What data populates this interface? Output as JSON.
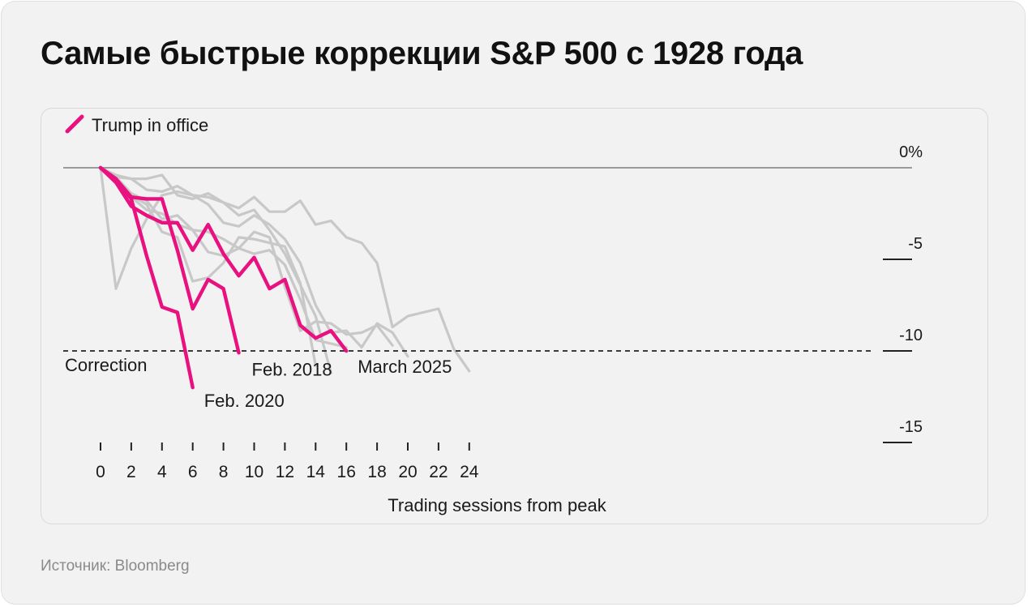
{
  "title": "Самые быстрые коррекции S&P 500 с 1928 года",
  "source": "Источник: Bloomberg",
  "chart_data": {
    "type": "line",
    "legend": {
      "label": "Trump in office",
      "color": "#e8117f",
      "placement": "top-left"
    },
    "xlabel": "Trading sessions from peak",
    "ylabel": "",
    "xlim": [
      0,
      24
    ],
    "ylim": [
      -15,
      0
    ],
    "x_ticks": [
      0,
      2,
      4,
      6,
      8,
      10,
      12,
      14,
      16,
      18,
      20,
      22,
      24
    ],
    "y_ticks": [
      {
        "value": 0,
        "label": "0%"
      },
      {
        "value": -5,
        "label": "-5"
      },
      {
        "value": -10,
        "label": "-10"
      },
      {
        "value": -15,
        "label": "-15"
      }
    ],
    "reference_line": {
      "value": -10,
      "label": "Correction",
      "style": "dashed"
    },
    "highlight_color": "#e8117f",
    "other_color": "#c8c8c8",
    "series": [
      {
        "highlight": true,
        "label": "Feb. 2020",
        "x": [
          0,
          1,
          2,
          3,
          4,
          5,
          6
        ],
        "y": [
          0,
          -0.7,
          -1.7,
          -4.8,
          -7.6,
          -7.9,
          -12.0
        ]
      },
      {
        "highlight": true,
        "label": "Feb. 2018",
        "x": [
          0,
          1,
          2,
          3,
          4,
          5,
          6,
          7,
          8,
          9
        ],
        "y": [
          0,
          -0.6,
          -1.6,
          -1.7,
          -1.7,
          -4.5,
          -7.7,
          -6.1,
          -6.6,
          -10.1
        ]
      },
      {
        "highlight": true,
        "label": "March 2025",
        "x": [
          0,
          1,
          2,
          3,
          4,
          5,
          6,
          7,
          8,
          9,
          10,
          11,
          12,
          13,
          14,
          15,
          16
        ],
        "y": [
          0,
          -0.8,
          -2.1,
          -2.6,
          -3.0,
          -3.0,
          -4.5,
          -3.1,
          -4.7,
          -5.9,
          -4.9,
          -6.6,
          -6.1,
          -8.6,
          -9.3,
          -8.9,
          -10.0
        ]
      },
      {
        "highlight": false,
        "x": [
          0,
          1,
          2,
          3,
          4,
          5,
          6,
          7,
          8,
          9,
          10,
          11,
          12,
          13,
          14,
          15,
          16,
          17,
          18,
          19,
          20
        ],
        "y": [
          0,
          -6.6,
          -4.4,
          -2.8,
          -1.5,
          -1.3,
          -1.5,
          -2.0,
          -3.0,
          -3.2,
          -2.6,
          -3.1,
          -3.9,
          -5.2,
          -7.5,
          -9.0,
          -8.9,
          -9.8,
          -8.5,
          -9.0,
          -10.3
        ]
      },
      {
        "highlight": false,
        "x": [
          0,
          1,
          2,
          3,
          4,
          5,
          6,
          7,
          8,
          9,
          10,
          11,
          12,
          13,
          14,
          15,
          16,
          17,
          18,
          19,
          20,
          21,
          22,
          23,
          24
        ],
        "y": [
          0,
          -0.5,
          -0.6,
          -1.2,
          -1.3,
          -1.0,
          -1.5,
          -1.6,
          -1.9,
          -2.2,
          -1.6,
          -2.4,
          -2.4,
          -1.8,
          -3.1,
          -2.9,
          -3.8,
          -4.1,
          -5.2,
          -8.7,
          -8.1,
          -7.9,
          -7.7,
          -9.9,
          -11.1
        ]
      },
      {
        "highlight": false,
        "x": [
          0,
          1,
          2,
          3,
          4,
          5,
          6,
          7,
          8,
          9,
          10,
          11,
          12,
          13,
          14,
          15
        ],
        "y": [
          0,
          -0.4,
          -0.6,
          -0.6,
          -0.4,
          -1.5,
          -1.7,
          -1.4,
          -1.9,
          -2.6,
          -2.3,
          -3.4,
          -4.7,
          -6.4,
          -8.1,
          -11.2
        ]
      },
      {
        "highlight": false,
        "x": [
          0,
          1,
          2,
          3,
          4,
          5,
          6,
          7,
          8,
          9,
          10,
          11,
          12,
          13,
          14
        ],
        "y": [
          0,
          -0.8,
          -1.5,
          -2.0,
          -3.5,
          -3.8,
          -6.2,
          -6.0,
          -5.2,
          -3.8,
          -3.9,
          -4.1,
          -4.3,
          -6.3,
          -10.8
        ]
      },
      {
        "highlight": false,
        "x": [
          0,
          1,
          2,
          3,
          4,
          5,
          6,
          7,
          8,
          9,
          10,
          11,
          12,
          13,
          14,
          15,
          16,
          17,
          18,
          19
        ],
        "y": [
          0,
          -0.7,
          -1.6,
          -2.3,
          -2.5,
          -3.1,
          -3.4,
          -3.5,
          -3.9,
          -4.4,
          -3.5,
          -3.8,
          -6.5,
          -8.9,
          -8.4,
          -8.5,
          -9.1,
          -9.0,
          -8.6,
          -9.7
        ]
      },
      {
        "highlight": false,
        "x": [
          0,
          1,
          2,
          3,
          4,
          5,
          6,
          7,
          8,
          9,
          10,
          11,
          12,
          13,
          14,
          15,
          16
        ],
        "y": [
          0,
          -0.5,
          -1.4,
          -1.8,
          -2.8,
          -2.6,
          -3.4,
          -4.6,
          -4.8,
          -4.4,
          -4.7,
          -4.5,
          -5.3,
          -7.2,
          -9.4,
          -9.6,
          -9.8
        ]
      }
    ]
  }
}
